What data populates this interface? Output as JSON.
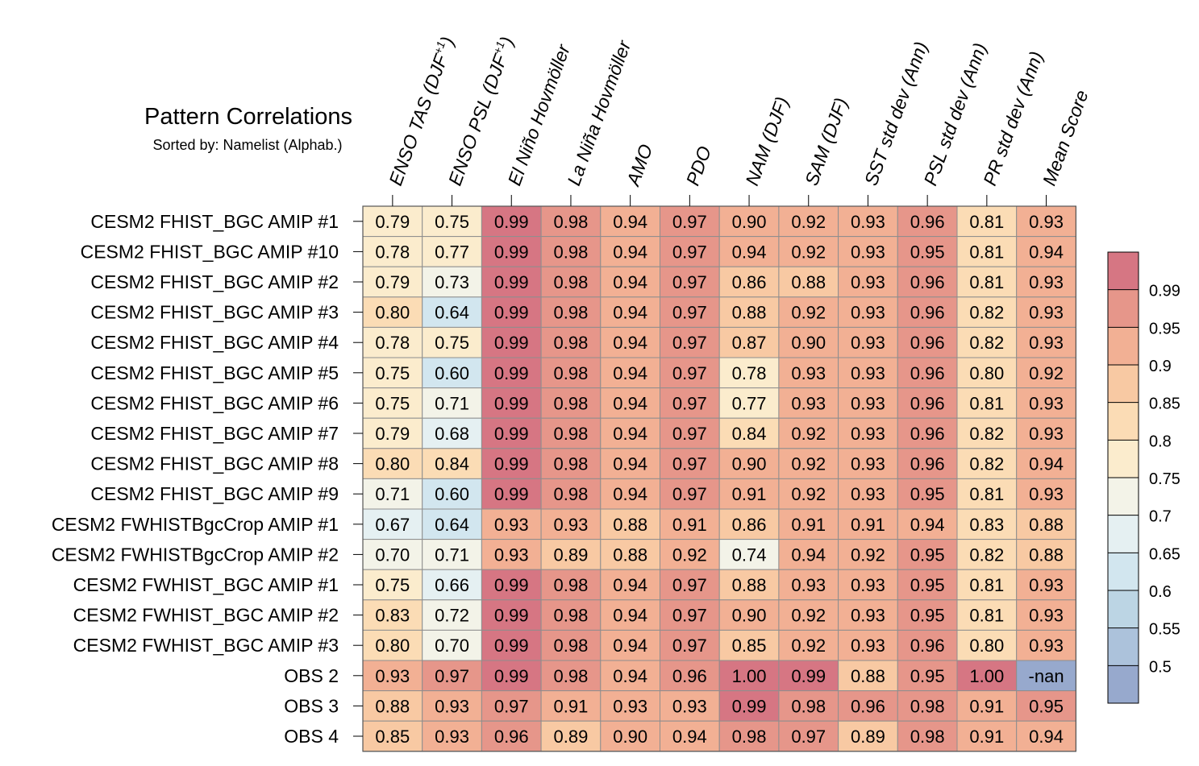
{
  "chart_data": {
    "type": "heatmap",
    "title": "Pattern Correlations",
    "subtitle": "Sorted by: Namelist (Alphab.)",
    "columns": [
      {
        "label": "ENSO TAS (DJF",
        "sup": "+1",
        "suffix": ")"
      },
      {
        "label": "ENSO PSL (DJF",
        "sup": "+1",
        "suffix": ")"
      },
      {
        "label": "El Niño Hovmöller",
        "sup": "",
        "suffix": ""
      },
      {
        "label": "La Niña Hovmöller",
        "sup": "",
        "suffix": ""
      },
      {
        "label": "AMO",
        "sup": "",
        "suffix": ""
      },
      {
        "label": "PDO",
        "sup": "",
        "suffix": ""
      },
      {
        "label": "NAM (DJF)",
        "sup": "",
        "suffix": ""
      },
      {
        "label": "SAM (DJF)",
        "sup": "",
        "suffix": ""
      },
      {
        "label": "SST std dev (Ann)",
        "sup": "",
        "suffix": ""
      },
      {
        "label": "PSL std dev (Ann)",
        "sup": "",
        "suffix": ""
      },
      {
        "label": "PR std dev (Ann)",
        "sup": "",
        "suffix": ""
      },
      {
        "label": "Mean Score",
        "sup": "",
        "suffix": ""
      }
    ],
    "rows": [
      "CESM2 FHIST_BGC AMIP #1",
      "CESM2 FHIST_BGC AMIP #10",
      "CESM2 FHIST_BGC AMIP #2",
      "CESM2 FHIST_BGC AMIP #3",
      "CESM2 FHIST_BGC AMIP #4",
      "CESM2 FHIST_BGC AMIP #5",
      "CESM2 FHIST_BGC AMIP #6",
      "CESM2 FHIST_BGC AMIP #7",
      "CESM2 FHIST_BGC AMIP #8",
      "CESM2 FHIST_BGC AMIP #9",
      "CESM2 FWHISTBgcCrop AMIP #1",
      "CESM2 FWHISTBgcCrop AMIP #2",
      "CESM2 FWHIST_BGC AMIP #1",
      "CESM2 FWHIST_BGC AMIP #2",
      "CESM2 FWHIST_BGC AMIP #3",
      "OBS 2",
      "OBS 3",
      "OBS 4"
    ],
    "values": [
      [
        "0.79",
        "0.75",
        "0.99",
        "0.98",
        "0.94",
        "0.97",
        "0.90",
        "0.92",
        "0.93",
        "0.96",
        "0.81",
        "0.93"
      ],
      [
        "0.78",
        "0.77",
        "0.99",
        "0.98",
        "0.94",
        "0.97",
        "0.94",
        "0.92",
        "0.93",
        "0.95",
        "0.81",
        "0.94"
      ],
      [
        "0.79",
        "0.73",
        "0.99",
        "0.98",
        "0.94",
        "0.97",
        "0.86",
        "0.88",
        "0.93",
        "0.96",
        "0.81",
        "0.93"
      ],
      [
        "0.80",
        "0.64",
        "0.99",
        "0.98",
        "0.94",
        "0.97",
        "0.88",
        "0.92",
        "0.93",
        "0.96",
        "0.82",
        "0.93"
      ],
      [
        "0.78",
        "0.75",
        "0.99",
        "0.98",
        "0.94",
        "0.97",
        "0.87",
        "0.90",
        "0.93",
        "0.96",
        "0.82",
        "0.93"
      ],
      [
        "0.75",
        "0.60",
        "0.99",
        "0.98",
        "0.94",
        "0.97",
        "0.78",
        "0.93",
        "0.93",
        "0.96",
        "0.80",
        "0.92"
      ],
      [
        "0.75",
        "0.71",
        "0.99",
        "0.98",
        "0.94",
        "0.97",
        "0.77",
        "0.93",
        "0.93",
        "0.96",
        "0.81",
        "0.93"
      ],
      [
        "0.79",
        "0.68",
        "0.99",
        "0.98",
        "0.94",
        "0.97",
        "0.84",
        "0.92",
        "0.93",
        "0.96",
        "0.82",
        "0.93"
      ],
      [
        "0.80",
        "0.84",
        "0.99",
        "0.98",
        "0.94",
        "0.97",
        "0.90",
        "0.92",
        "0.93",
        "0.96",
        "0.82",
        "0.94"
      ],
      [
        "0.71",
        "0.60",
        "0.99",
        "0.98",
        "0.94",
        "0.97",
        "0.91",
        "0.92",
        "0.93",
        "0.95",
        "0.81",
        "0.93"
      ],
      [
        "0.67",
        "0.64",
        "0.93",
        "0.93",
        "0.88",
        "0.91",
        "0.86",
        "0.91",
        "0.91",
        "0.94",
        "0.83",
        "0.88"
      ],
      [
        "0.70",
        "0.71",
        "0.93",
        "0.89",
        "0.88",
        "0.92",
        "0.74",
        "0.94",
        "0.92",
        "0.95",
        "0.82",
        "0.88"
      ],
      [
        "0.75",
        "0.66",
        "0.99",
        "0.98",
        "0.94",
        "0.97",
        "0.88",
        "0.93",
        "0.93",
        "0.95",
        "0.81",
        "0.93"
      ],
      [
        "0.83",
        "0.72",
        "0.99",
        "0.98",
        "0.94",
        "0.97",
        "0.90",
        "0.92",
        "0.93",
        "0.95",
        "0.81",
        "0.93"
      ],
      [
        "0.80",
        "0.70",
        "0.99",
        "0.98",
        "0.94",
        "0.97",
        "0.85",
        "0.92",
        "0.93",
        "0.96",
        "0.80",
        "0.93"
      ],
      [
        "0.93",
        "0.97",
        "0.99",
        "0.98",
        "0.94",
        "0.96",
        "1.00",
        "0.99",
        "0.88",
        "0.95",
        "1.00",
        "-nan"
      ],
      [
        "0.88",
        "0.93",
        "0.97",
        "0.91",
        "0.93",
        "0.93",
        "0.99",
        "0.98",
        "0.96",
        "0.98",
        "0.91",
        "0.95"
      ],
      [
        "0.85",
        "0.93",
        "0.96",
        "0.89",
        "0.90",
        "0.94",
        "0.98",
        "0.97",
        "0.89",
        "0.98",
        "0.91",
        "0.94"
      ]
    ],
    "colorbar": {
      "levels": [
        "0.5",
        "0.55",
        "0.6",
        "0.65",
        "0.7",
        "0.75",
        "0.8",
        "0.85",
        "0.9",
        "0.95",
        "0.99"
      ],
      "colors": [
        "#97a9cd",
        "#acc2db",
        "#bcd5e4",
        "#d2e6ef",
        "#e5f0f2",
        "#f3f3e8",
        "#fbeccd",
        "#fbdcb5",
        "#f8c9a3",
        "#f2b094",
        "#e6968a",
        "#d67683"
      ],
      "nan_color": "#97a9cd"
    }
  }
}
